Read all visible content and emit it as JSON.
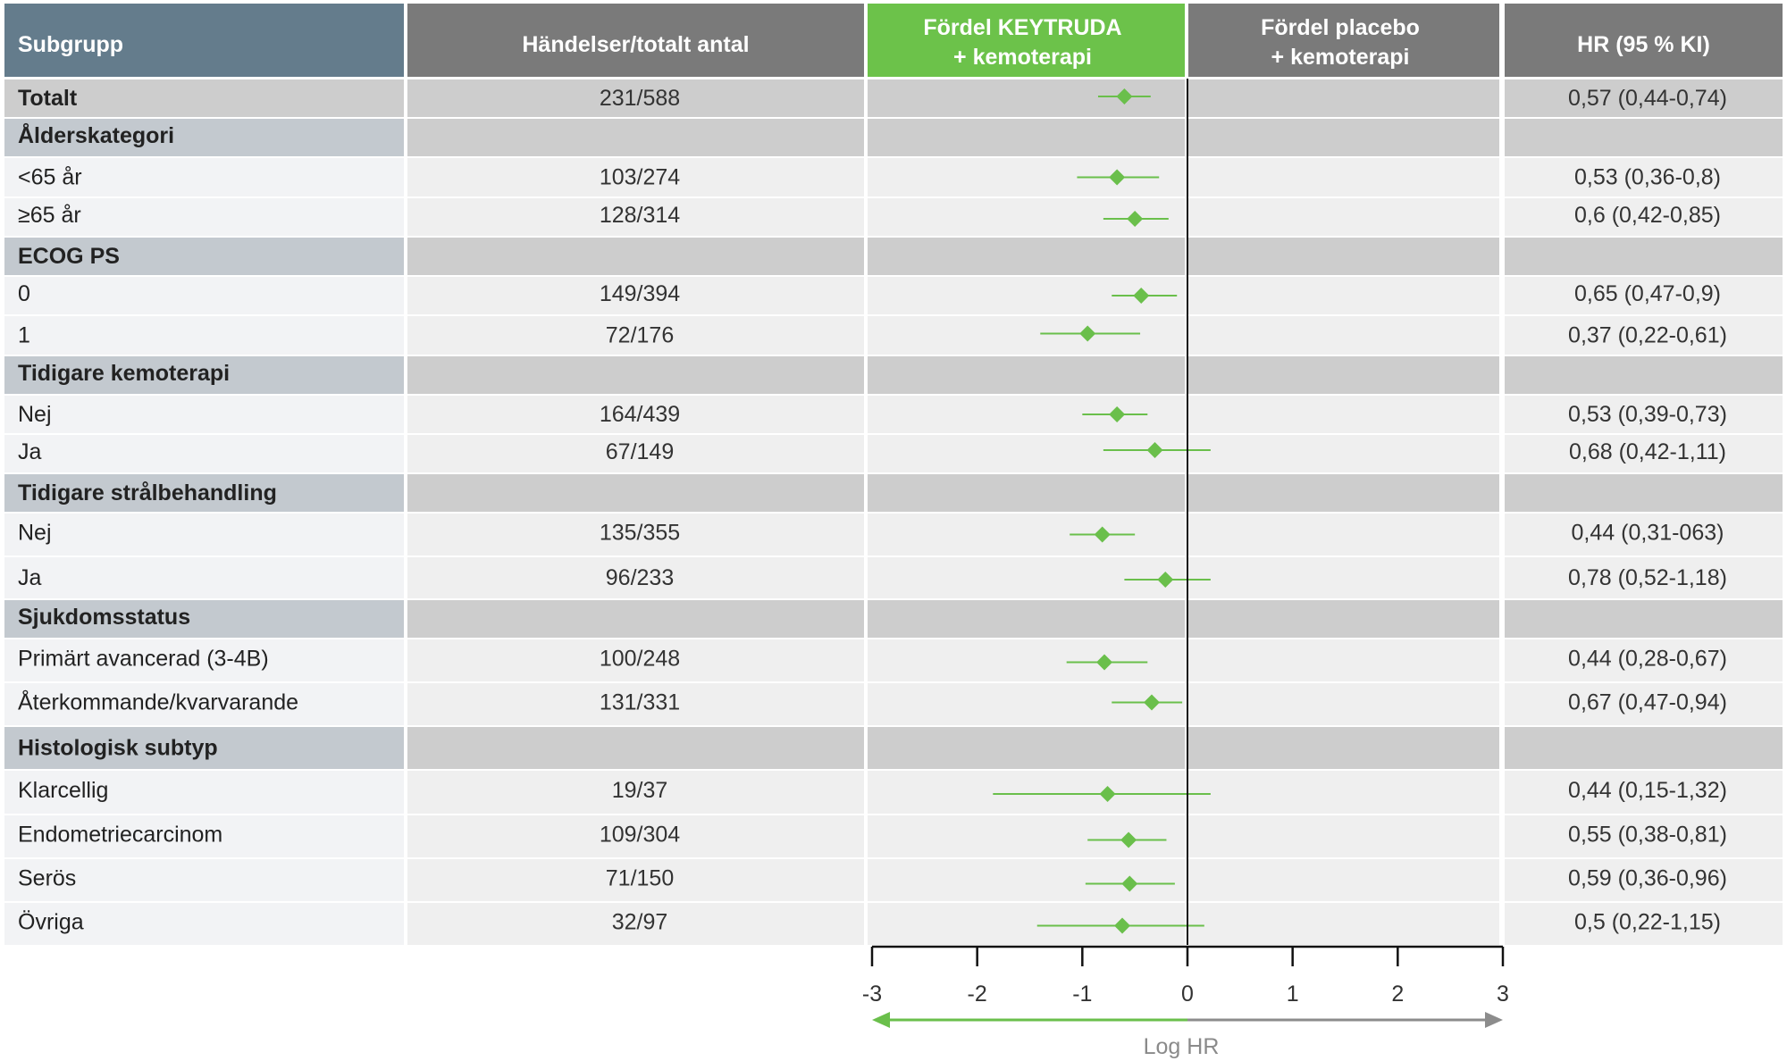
{
  "headers": {
    "subgroup": "Subgrupp",
    "events": "Händelser/totalt antal",
    "favor_left": [
      "Fördel KEYTRUDA",
      "+ kemoterapi"
    ],
    "favor_right": [
      "Fördel placebo",
      "+ kemoterapi"
    ],
    "hr": "HR (95 % KI)"
  },
  "colors": {
    "header_subgroup": "#647c8c",
    "header_gray": "#7a7a7a",
    "header_green": "#6cc24a",
    "section_label_bg": "#c3c9cf",
    "section_bg": "#cdcdcd",
    "row_light": "#efefef",
    "row_light_label": "#f2f3f5",
    "marker": "#6abf4b",
    "axis_right": "#8c8c8c"
  },
  "chart_data": {
    "type": "forest",
    "xlabel": "Log HR",
    "xlim": [
      -3,
      3
    ],
    "xticks": [
      "-3",
      "-2",
      "-1",
      "0",
      "1",
      "2",
      "3"
    ],
    "reference_line": 0,
    "rows": [
      {
        "label": "Totalt",
        "kind": "total",
        "events": "231/588",
        "hr_text": "0,57 (0,44-0,74)",
        "est": -0.6,
        "lo": -0.85,
        "hi": -0.35
      },
      {
        "label": "Ålderskategori",
        "kind": "section"
      },
      {
        "label": " <65 år",
        "kind": "row",
        "events": "103/274",
        "hr_text": "0,53 (0,36-0,8)",
        "est": -0.67,
        "lo": -1.05,
        "hi": -0.27
      },
      {
        "label": " ≥65 år",
        "kind": "row",
        "events": "128/314",
        "hr_text": "0,6 (0,42-0,85)",
        "est": -0.5,
        "lo": -0.8,
        "hi": -0.18
      },
      {
        "label": "ECOG PS",
        "kind": "section"
      },
      {
        "label": "0",
        "kind": "row",
        "events": "149/394",
        "hr_text": "0,65 (0,47-0,9)",
        "est": -0.44,
        "lo": -0.72,
        "hi": -0.1
      },
      {
        "label": "1",
        "kind": "row",
        "events": "72/176",
        "hr_text": "0,37 (0,22-0,61)",
        "est": -0.95,
        "lo": -1.4,
        "hi": -0.45
      },
      {
        "label": "Tidigare kemoterapi",
        "kind": "section"
      },
      {
        "label": "Nej",
        "kind": "row",
        "events": "164/439",
        "hr_text": "0,53 (0,39-0,73)",
        "est": -0.67,
        "lo": -1.0,
        "hi": -0.38
      },
      {
        "label": "Ja",
        "kind": "row",
        "events": "67/149",
        "hr_text": "0,68 (0,42-1,11)",
        "est": -0.31,
        "lo": -0.8,
        "hi": 0.22
      },
      {
        "label": "Tidigare strålbehandling",
        "kind": "section"
      },
      {
        "label": "Nej",
        "kind": "row",
        "events": "135/355",
        "hr_text": "0,44 (0,31-063)",
        "est": -0.81,
        "lo": -1.12,
        "hi": -0.5
      },
      {
        "label": "Ja",
        "kind": "row",
        "events": "96/233",
        "hr_text": "0,78 (0,52-1,18)",
        "est": -0.21,
        "lo": -0.6,
        "hi": 0.22
      },
      {
        "label": "Sjukdomsstatus",
        "kind": "section"
      },
      {
        "label": "Primärt avancerad (3-4B)",
        "kind": "row",
        "events": "100/248",
        "hr_text": "0,44 (0,28-0,67)",
        "est": -0.79,
        "lo": -1.15,
        "hi": -0.38
      },
      {
        "label": "Återkommande/kvarvarande",
        "kind": "row",
        "events": "131/331",
        "hr_text": "0,67 (0,47-0,94)",
        "est": -0.34,
        "lo": -0.72,
        "hi": -0.05
      },
      {
        "label": "Histologisk subtyp",
        "kind": "section"
      },
      {
        "label": "Klarcellig",
        "kind": "row",
        "events": "19/37",
        "hr_text": "0,44 (0,15-1,32)",
        "est": -0.76,
        "lo": -1.85,
        "hi": 0.22
      },
      {
        "label": "Endometriecarcinom",
        "kind": "row",
        "events": "109/304",
        "hr_text": "0,55 (0,38-0,81)",
        "est": -0.56,
        "lo": -0.95,
        "hi": -0.2
      },
      {
        "label": "Serös",
        "kind": "row",
        "events": "71/150",
        "hr_text": "0,59 (0,36-0,96)",
        "est": -0.55,
        "lo": -0.97,
        "hi": -0.12
      },
      {
        "label": "Övriga",
        "kind": "row",
        "events": "32/97",
        "hr_text": "0,5 (0,22-1,15)",
        "est": -0.62,
        "lo": -1.43,
        "hi": 0.16
      }
    ]
  }
}
